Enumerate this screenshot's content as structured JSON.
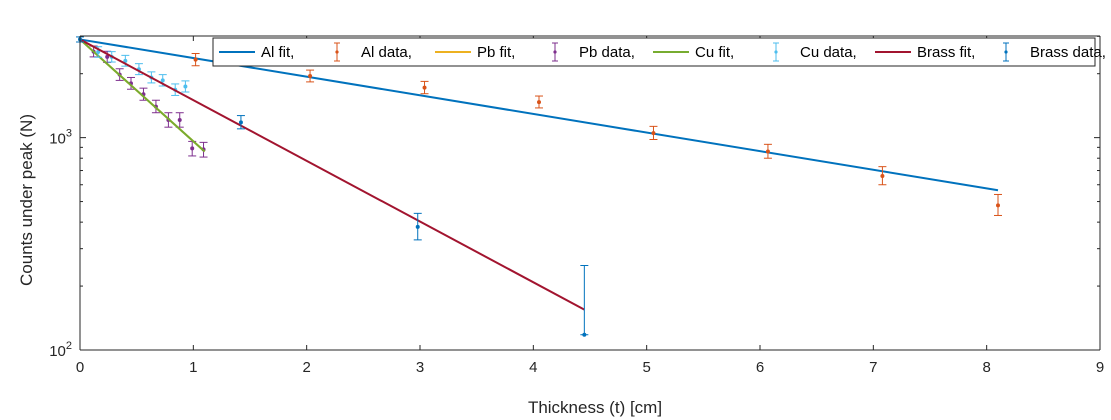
{
  "chart_data": {
    "type": "scatter",
    "title": "",
    "xlabel": "Thickness (t) [cm]",
    "ylabel": "Counts under peak (N)",
    "xlim": [
      0,
      9
    ],
    "ylim": [
      100,
      3000
    ],
    "yscale": "log",
    "x_ticks": [
      0,
      1,
      2,
      3,
      4,
      5,
      6,
      7,
      8,
      9
    ],
    "y_ticks": [
      {
        "value": 100,
        "base": "10",
        "exp": "2"
      },
      {
        "value": 1000,
        "base": "10",
        "exp": "3"
      }
    ],
    "grid": false,
    "legend_position": "top-right",
    "legend": [
      {
        "label": "Al fit,",
        "kind": "line",
        "color": "#0072BD"
      },
      {
        "label": "Al data,",
        "kind": "errorbar",
        "color": "#D95319"
      },
      {
        "label": "Pb fit,",
        "kind": "line",
        "color": "#EDB120"
      },
      {
        "label": "Pb data,",
        "kind": "errorbar",
        "color": "#7E2F8E"
      },
      {
        "label": "Cu fit,",
        "kind": "line",
        "color": "#77AC30"
      },
      {
        "label": "Cu data,",
        "kind": "errorbar",
        "color": "#4DBEEE"
      },
      {
        "label": "Brass fit,",
        "kind": "line",
        "color": "#A2142F"
      },
      {
        "label": "Brass data,",
        "kind": "errorbar",
        "color": "#0072BD"
      }
    ],
    "series": [
      {
        "name": "Al fit,",
        "kind": "line",
        "color": "#0072BD",
        "x": [
          0,
          8.1
        ],
        "y": [
          2900,
          565
        ]
      },
      {
        "name": "Al data,",
        "kind": "errorbar",
        "color": "#D95319",
        "points": [
          {
            "x": 1.02,
            "y": 2330,
            "lo": 2180,
            "hi": 2490
          },
          {
            "x": 2.03,
            "y": 1950,
            "lo": 1830,
            "hi": 2080
          },
          {
            "x": 3.04,
            "y": 1720,
            "lo": 1610,
            "hi": 1840
          },
          {
            "x": 4.05,
            "y": 1470,
            "lo": 1380,
            "hi": 1570
          },
          {
            "x": 5.06,
            "y": 1050,
            "lo": 980,
            "hi": 1130
          },
          {
            "x": 6.07,
            "y": 860,
            "lo": 800,
            "hi": 930
          },
          {
            "x": 7.08,
            "y": 660,
            "lo": 600,
            "hi": 730
          },
          {
            "x": 8.1,
            "y": 480,
            "lo": 430,
            "hi": 540
          }
        ]
      },
      {
        "name": "Pb fit,",
        "kind": "line",
        "color": "#EDB120",
        "x": [
          0,
          1.1
        ],
        "y": [
          2900,
          860
        ]
      },
      {
        "name": "Pb data,",
        "kind": "errorbar",
        "color": "#7E2F8E",
        "points": [
          {
            "x": 0.12,
            "y": 2540,
            "lo": 2400,
            "hi": 2700
          },
          {
            "x": 0.24,
            "y": 2400,
            "lo": 2260,
            "hi": 2550
          },
          {
            "x": 0.35,
            "y": 1980,
            "lo": 1860,
            "hi": 2110
          },
          {
            "x": 0.45,
            "y": 1800,
            "lo": 1690,
            "hi": 1920
          },
          {
            "x": 0.56,
            "y": 1600,
            "lo": 1500,
            "hi": 1710
          },
          {
            "x": 0.67,
            "y": 1400,
            "lo": 1310,
            "hi": 1500
          },
          {
            "x": 0.78,
            "y": 1210,
            "lo": 1120,
            "hi": 1310
          },
          {
            "x": 0.88,
            "y": 1210,
            "lo": 1120,
            "hi": 1310
          },
          {
            "x": 0.99,
            "y": 890,
            "lo": 820,
            "hi": 960
          },
          {
            "x": 1.09,
            "y": 880,
            "lo": 810,
            "hi": 950
          }
        ]
      },
      {
        "name": "Cu fit,",
        "kind": "line",
        "color": "#77AC30",
        "x": [
          0,
          1.1
        ],
        "y": [
          2900,
          860
        ]
      },
      {
        "name": "Cu data,",
        "kind": "errorbar",
        "color": "#4DBEEE",
        "points": [
          {
            "x": 0.16,
            "y": 2530,
            "lo": 2390,
            "hi": 2680
          },
          {
            "x": 0.28,
            "y": 2400,
            "lo": 2270,
            "hi": 2540
          },
          {
            "x": 0.4,
            "y": 2300,
            "lo": 2170,
            "hi": 2440
          },
          {
            "x": 0.52,
            "y": 2100,
            "lo": 1980,
            "hi": 2230
          },
          {
            "x": 0.63,
            "y": 1920,
            "lo": 1810,
            "hi": 2040
          },
          {
            "x": 0.73,
            "y": 1860,
            "lo": 1750,
            "hi": 1980
          },
          {
            "x": 0.84,
            "y": 1680,
            "lo": 1580,
            "hi": 1790
          },
          {
            "x": 0.93,
            "y": 1740,
            "lo": 1640,
            "hi": 1850
          }
        ]
      },
      {
        "name": "Brass fit,",
        "kind": "line",
        "color": "#A2142F",
        "x": [
          0,
          4.45
        ],
        "y": [
          2900,
          155
        ]
      },
      {
        "name": "Brass data,",
        "kind": "errorbar",
        "color": "#0072BD",
        "points": [
          {
            "x": 0.0,
            "y": 2900,
            "lo": 2820,
            "hi": 2980
          },
          {
            "x": 1.42,
            "y": 1180,
            "lo": 1100,
            "hi": 1270
          },
          {
            "x": 2.98,
            "y": 380,
            "lo": 330,
            "hi": 440
          },
          {
            "x": 4.45,
            "y": 118,
            "lo": 118,
            "hi": 250
          }
        ]
      }
    ]
  }
}
